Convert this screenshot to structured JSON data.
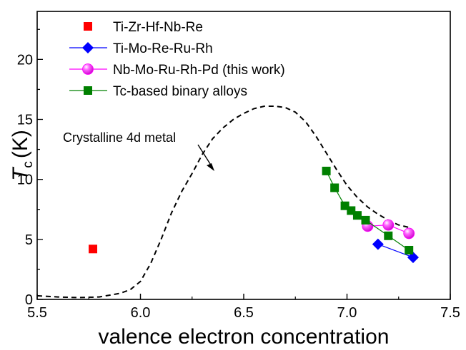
{
  "chart_data": {
    "type": "scatter",
    "xlabel": "valence electron concentration",
    "ylabel_main": "T",
    "ylabel_sub": "c",
    "ylabel_unit": "(K)",
    "xlim": [
      5.5,
      7.5
    ],
    "ylim": [
      0,
      24
    ],
    "xticks": [
      5.5,
      6.0,
      6.5,
      7.0,
      7.5
    ],
    "xtick_labels": [
      "5.5",
      "6.0",
      "6.5",
      "7.0",
      "7.5"
    ],
    "yticks": [
      0,
      5,
      10,
      15,
      20
    ],
    "ytick_labels": [
      "0",
      "5",
      "10",
      "15",
      "20"
    ],
    "grid": false,
    "legend_position": "top-left",
    "annotation": "Crystalline 4d metal",
    "series": [
      {
        "name": "Ti-Zr-Hf-Nb-Re",
        "marker": "square",
        "color": "#ff0000",
        "line": false,
        "x": [
          5.77
        ],
        "y": [
          4.2
        ]
      },
      {
        "name": "Ti-Mo-Re-Ru-Rh",
        "marker": "diamond",
        "color": "#0000ff",
        "line": true,
        "x": [
          7.15,
          7.32
        ],
        "y": [
          4.6,
          3.5
        ]
      },
      {
        "name": "Nb-Mo-Ru-Rh-Pd (this work)",
        "marker": "sphere",
        "color": "#ff00ff",
        "line": true,
        "x": [
          7.1,
          7.2,
          7.3
        ],
        "y": [
          6.1,
          6.2,
          5.5
        ]
      },
      {
        "name": "Tc-based binary alloys",
        "marker": "square",
        "color": "#008000",
        "line": true,
        "x": [
          6.9,
          6.94,
          6.99,
          7.02,
          7.05,
          7.09,
          7.2,
          7.3
        ],
        "y": [
          10.7,
          9.3,
          7.8,
          7.4,
          7.0,
          6.6,
          5.3,
          4.1
        ]
      }
    ],
    "reference_curve": {
      "style": "dashed",
      "color": "#000000",
      "x": [
        5.5,
        5.6,
        5.7,
        5.8,
        5.9,
        5.95,
        6.0,
        6.05,
        6.1,
        6.15,
        6.2,
        6.25,
        6.3,
        6.35,
        6.4,
        6.45,
        6.5,
        6.55,
        6.6,
        6.65,
        6.7,
        6.75,
        6.8,
        6.85,
        6.9,
        6.95,
        7.0,
        7.05,
        7.1,
        7.15,
        7.2,
        7.25,
        7.3
      ],
      "y": [
        0.3,
        0.2,
        0.15,
        0.2,
        0.5,
        0.8,
        1.5,
        3.0,
        5.0,
        7.2,
        9.0,
        10.5,
        12.1,
        13.4,
        14.3,
        15.0,
        15.5,
        15.9,
        16.1,
        16.1,
        16.0,
        15.6,
        14.8,
        13.6,
        12.2,
        10.8,
        9.5,
        8.5,
        7.7,
        7.1,
        6.6,
        6.2,
        6.0
      ]
    }
  }
}
